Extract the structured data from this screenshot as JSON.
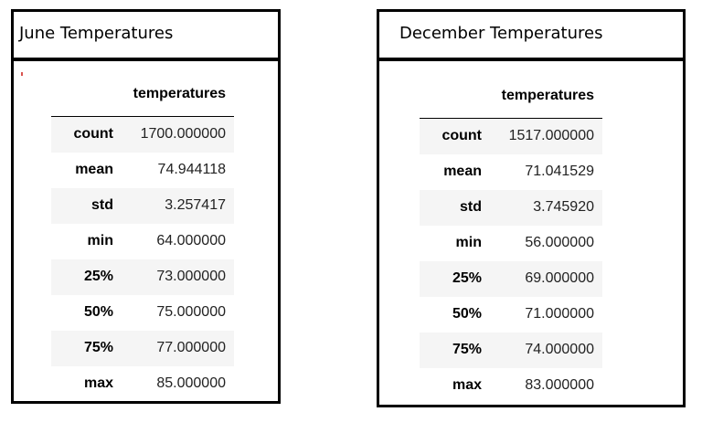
{
  "june": {
    "title": "June Temperatures",
    "column": "temperatures",
    "rows": [
      {
        "stat": "count",
        "value": "1700.000000"
      },
      {
        "stat": "mean",
        "value": "74.944118"
      },
      {
        "stat": "std",
        "value": "3.257417"
      },
      {
        "stat": "min",
        "value": "64.000000"
      },
      {
        "stat": "25%",
        "value": "73.000000"
      },
      {
        "stat": "50%",
        "value": "75.000000"
      },
      {
        "stat": "75%",
        "value": "77.000000"
      },
      {
        "stat": "max",
        "value": "85.000000"
      }
    ]
  },
  "december": {
    "title": "December Temperatures",
    "column": "temperatures",
    "rows": [
      {
        "stat": "count",
        "value": "1517.000000"
      },
      {
        "stat": "mean",
        "value": "71.041529"
      },
      {
        "stat": "std",
        "value": "3.745920"
      },
      {
        "stat": "min",
        "value": "56.000000"
      },
      {
        "stat": "25%",
        "value": "69.000000"
      },
      {
        "stat": "50%",
        "value": "71.000000"
      },
      {
        "stat": "75%",
        "value": "74.000000"
      },
      {
        "stat": "max",
        "value": "83.000000"
      }
    ]
  }
}
